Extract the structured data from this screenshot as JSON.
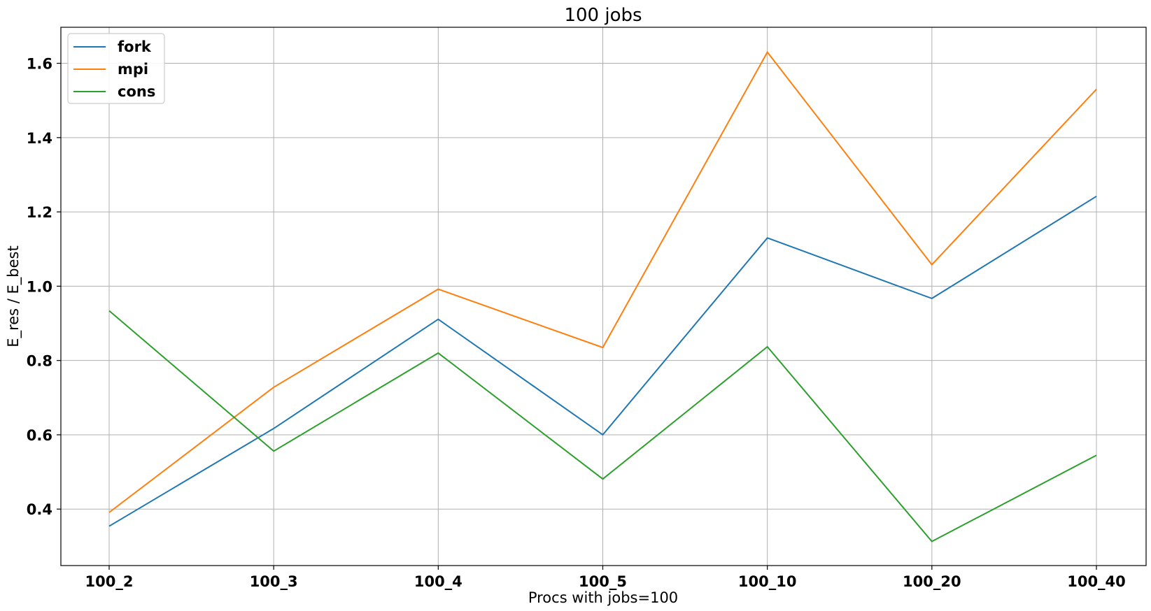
{
  "chart_data": {
    "type": "line",
    "title": "100 jobs",
    "xlabel": "Procs with jobs=100",
    "ylabel": "E_res / E_best",
    "categories": [
      "100_2",
      "100_3",
      "100_4",
      "100_5",
      "100_10",
      "100_20",
      "100_40"
    ],
    "ylim": [
      0.248,
      1.697
    ],
    "yticks": [
      0.4,
      0.6,
      0.8,
      1.0,
      1.2,
      1.4,
      1.6
    ],
    "ytick_labels": [
      "0.4",
      "0.6",
      "0.8",
      "1.0",
      "1.2",
      "1.4",
      "1.6"
    ],
    "grid": true,
    "legend_position": "top-left",
    "series": [
      {
        "name": "fork",
        "color": "#1f77b4",
        "values": [
          0.354,
          0.617,
          0.911,
          0.6,
          1.13,
          0.967,
          1.242
        ]
      },
      {
        "name": "mpi",
        "color": "#ff7f0e",
        "values": [
          0.391,
          0.728,
          0.992,
          0.835,
          1.63,
          1.058,
          1.53
        ]
      },
      {
        "name": "cons",
        "color": "#2ca02c",
        "values": [
          0.934,
          0.556,
          0.82,
          0.481,
          0.837,
          0.313,
          0.545
        ]
      }
    ]
  }
}
